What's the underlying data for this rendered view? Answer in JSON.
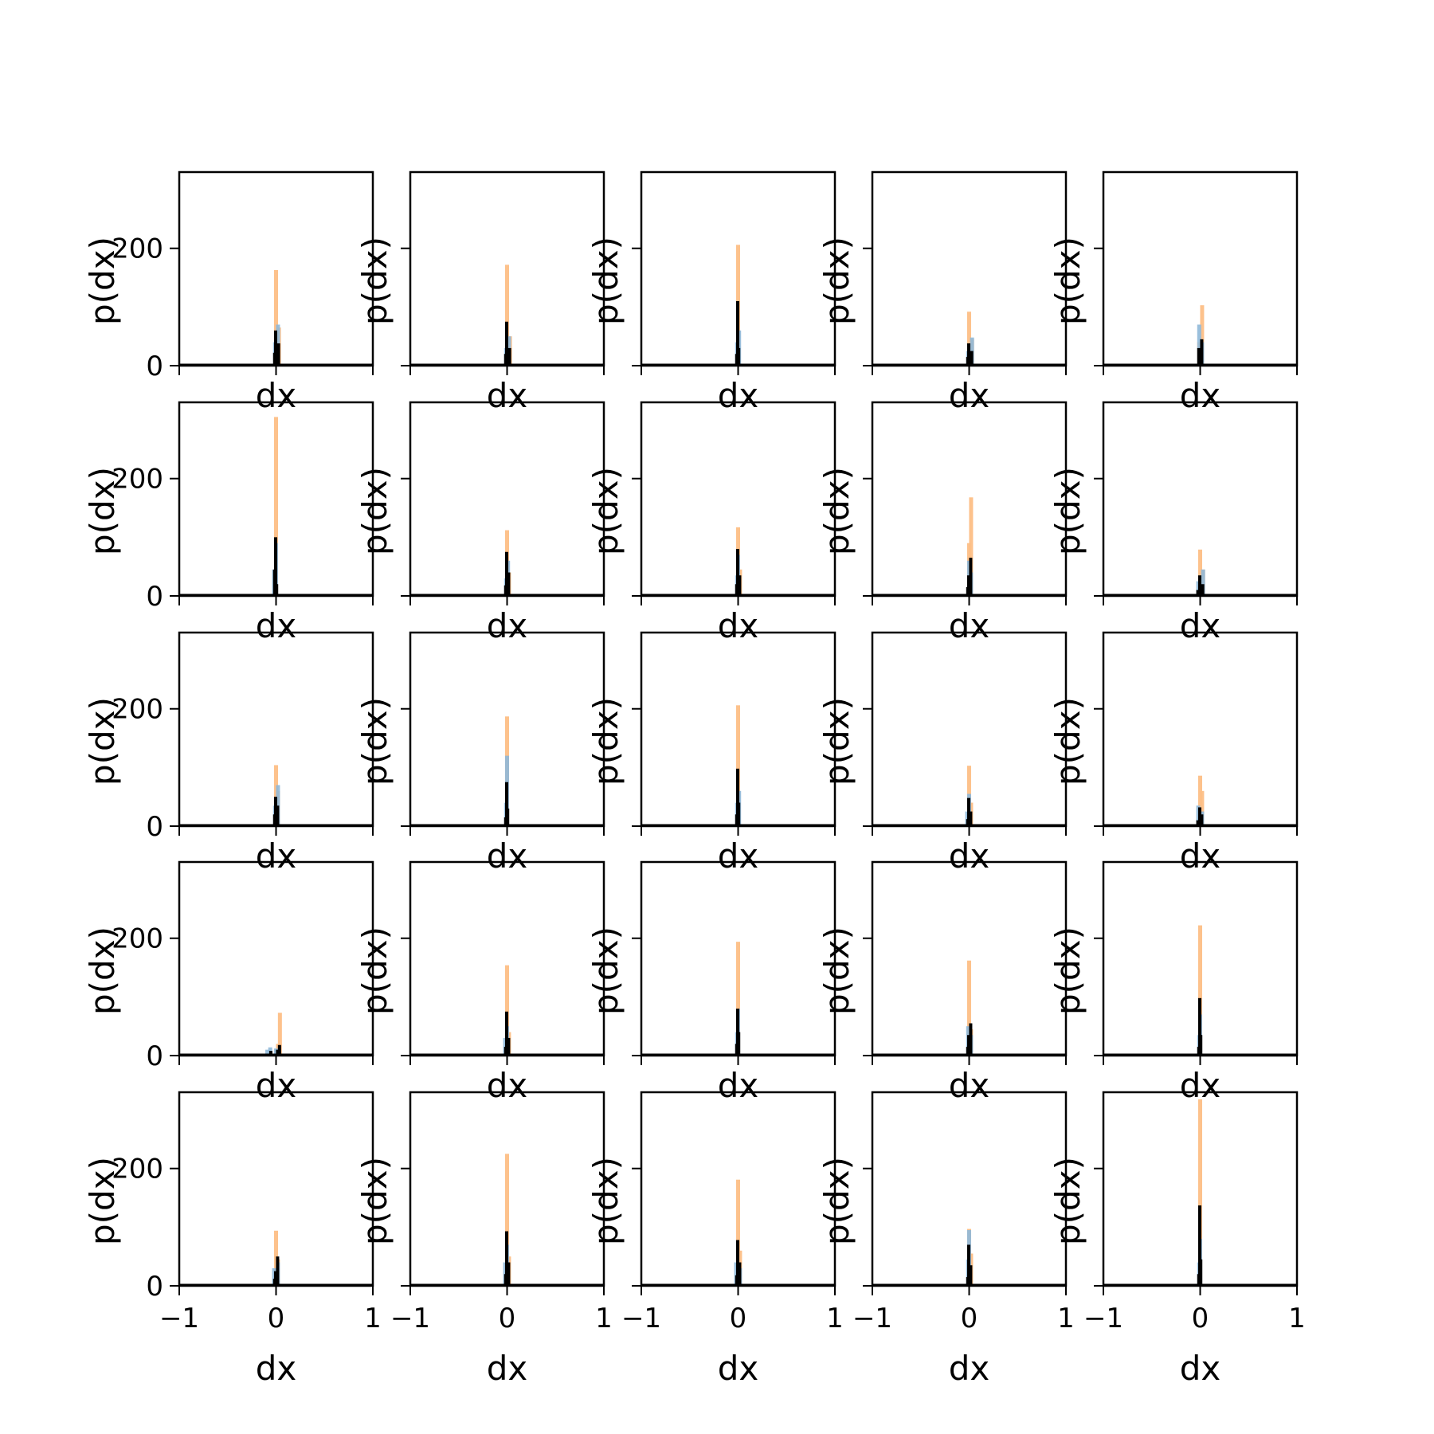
{
  "chart_data": {
    "type": "histogram-grid",
    "rows": 5,
    "cols": 5,
    "xlabel": "dx",
    "ylabel": "p(dx)",
    "xlim": [
      -1,
      1
    ],
    "ylim": [
      0,
      330
    ],
    "xticks": [
      -1,
      0,
      1
    ],
    "xtick_labels": [
      "−1",
      "0",
      "1"
    ],
    "yticks": [
      0,
      200
    ],
    "ytick_labels": [
      "0",
      "200"
    ],
    "grid": false,
    "legend": "none",
    "series_colors": {
      "orange": "#fdbf86",
      "blue": "#8fb8d8",
      "black": "#000000"
    },
    "panels": [
      {
        "row": 0,
        "col": 0,
        "orange": [
          [
            0.0,
            163
          ],
          [
            0.03,
            65
          ]
        ],
        "blue": [
          [
            0.02,
            70
          ],
          [
            -0.01,
            40
          ]
        ],
        "black": [
          [
            0.0,
            60
          ],
          [
            0.03,
            38
          ],
          [
            -0.01,
            22
          ]
        ]
      },
      {
        "row": 0,
        "col": 1,
        "orange": [
          [
            0.0,
            172
          ],
          [
            0.03,
            50
          ]
        ],
        "blue": [
          [
            0.02,
            50
          ],
          [
            -0.01,
            30
          ]
        ],
        "black": [
          [
            0.0,
            75
          ],
          [
            0.03,
            30
          ],
          [
            -0.01,
            20
          ]
        ]
      },
      {
        "row": 0,
        "col": 2,
        "orange": [
          [
            0.0,
            206
          ]
        ],
        "blue": [
          [
            0.01,
            60
          ],
          [
            -0.01,
            40
          ]
        ],
        "black": [
          [
            0.0,
            110
          ],
          [
            0.01,
            30
          ],
          [
            -0.01,
            20
          ]
        ]
      },
      {
        "row": 0,
        "col": 3,
        "orange": [
          [
            0.0,
            92
          ],
          [
            0.03,
            45
          ]
        ],
        "blue": [
          [
            0.03,
            48
          ],
          [
            -0.01,
            25
          ]
        ],
        "black": [
          [
            0.0,
            38
          ],
          [
            0.03,
            25
          ],
          [
            -0.01,
            15
          ]
        ]
      },
      {
        "row": 0,
        "col": 4,
        "orange": [
          [
            0.02,
            103
          ],
          [
            -0.01,
            40
          ]
        ],
        "blue": [
          [
            -0.01,
            70
          ],
          [
            0.02,
            40
          ]
        ],
        "black": [
          [
            0.02,
            45
          ],
          [
            -0.01,
            30
          ],
          [
            0.0,
            15
          ]
        ]
      },
      {
        "row": 1,
        "col": 0,
        "orange": [
          [
            0.0,
            305
          ]
        ],
        "blue": [
          [
            0.0,
            90
          ],
          [
            -0.02,
            45
          ]
        ],
        "black": [
          [
            0.0,
            100
          ],
          [
            -0.01,
            45
          ],
          [
            0.01,
            20
          ]
        ]
      },
      {
        "row": 1,
        "col": 1,
        "orange": [
          [
            0.0,
            112
          ],
          [
            0.02,
            40
          ]
        ],
        "blue": [
          [
            0.01,
            60
          ],
          [
            -0.01,
            30
          ]
        ],
        "black": [
          [
            0.0,
            75
          ],
          [
            0.02,
            40
          ],
          [
            -0.01,
            18
          ]
        ]
      },
      {
        "row": 1,
        "col": 2,
        "orange": [
          [
            0.0,
            117
          ],
          [
            0.02,
            45
          ]
        ],
        "blue": [
          [
            0.0,
            70
          ],
          [
            -0.01,
            35
          ]
        ],
        "black": [
          [
            0.0,
            80
          ],
          [
            0.02,
            35
          ],
          [
            -0.01,
            20
          ]
        ]
      },
      {
        "row": 1,
        "col": 3,
        "orange": [
          [
            0.02,
            168
          ],
          [
            0.0,
            90
          ]
        ],
        "blue": [
          [
            0.0,
            60
          ],
          [
            0.02,
            40
          ]
        ],
        "black": [
          [
            0.02,
            65
          ],
          [
            0.0,
            35
          ],
          [
            -0.01,
            15
          ]
        ]
      },
      {
        "row": 1,
        "col": 4,
        "orange": [
          [
            0.0,
            79
          ],
          [
            0.03,
            45
          ]
        ],
        "blue": [
          [
            0.03,
            45
          ],
          [
            -0.02,
            25
          ]
        ],
        "black": [
          [
            0.0,
            35
          ],
          [
            0.03,
            20
          ],
          [
            -0.02,
            10
          ]
        ]
      },
      {
        "row": 2,
        "col": 0,
        "orange": [
          [
            0.0,
            104
          ],
          [
            0.02,
            60
          ]
        ],
        "blue": [
          [
            0.02,
            70
          ],
          [
            -0.01,
            35
          ]
        ],
        "black": [
          [
            0.0,
            50
          ],
          [
            0.02,
            35
          ],
          [
            -0.01,
            20
          ]
        ]
      },
      {
        "row": 2,
        "col": 1,
        "orange": [
          [
            0.0,
            187
          ]
        ],
        "blue": [
          [
            0.0,
            120
          ],
          [
            -0.01,
            40
          ]
        ],
        "black": [
          [
            0.0,
            75
          ],
          [
            0.01,
            30
          ],
          [
            -0.01,
            15
          ]
        ]
      },
      {
        "row": 2,
        "col": 2,
        "orange": [
          [
            0.0,
            206
          ]
        ],
        "blue": [
          [
            0.01,
            60
          ],
          [
            -0.01,
            40
          ]
        ],
        "black": [
          [
            0.0,
            98
          ],
          [
            0.01,
            40
          ],
          [
            -0.01,
            20
          ]
        ]
      },
      {
        "row": 2,
        "col": 3,
        "orange": [
          [
            0.0,
            103
          ],
          [
            0.02,
            40
          ]
        ],
        "blue": [
          [
            0.0,
            55
          ],
          [
            -0.02,
            25
          ]
        ],
        "black": [
          [
            0.0,
            48
          ],
          [
            0.02,
            25
          ],
          [
            -0.01,
            12
          ]
        ]
      },
      {
        "row": 2,
        "col": 4,
        "orange": [
          [
            0.0,
            86
          ],
          [
            0.02,
            60
          ]
        ],
        "blue": [
          [
            -0.02,
            35
          ],
          [
            0.02,
            25
          ]
        ],
        "black": [
          [
            0.0,
            32
          ],
          [
            0.02,
            20
          ],
          [
            -0.02,
            10
          ]
        ]
      },
      {
        "row": 3,
        "col": 0,
        "orange": [
          [
            0.04,
            73
          ],
          [
            0.02,
            20
          ]
        ],
        "blue": [
          [
            -0.06,
            14
          ],
          [
            -0.09,
            10
          ],
          [
            0.0,
            12
          ]
        ],
        "black": [
          [
            0.04,
            18
          ],
          [
            0.02,
            10
          ],
          [
            -0.05,
            8
          ]
        ]
      },
      {
        "row": 3,
        "col": 1,
        "orange": [
          [
            0.0,
            154
          ],
          [
            0.02,
            40
          ]
        ],
        "blue": [
          [
            0.0,
            50
          ],
          [
            -0.02,
            30
          ]
        ],
        "black": [
          [
            0.0,
            75
          ],
          [
            0.02,
            30
          ],
          [
            -0.01,
            15
          ]
        ]
      },
      {
        "row": 3,
        "col": 2,
        "orange": [
          [
            0.0,
            194
          ]
        ],
        "blue": [
          [
            0.0,
            80
          ],
          [
            -0.01,
            40
          ]
        ],
        "black": [
          [
            0.0,
            80
          ],
          [
            0.01,
            40
          ],
          [
            -0.01,
            20
          ]
        ]
      },
      {
        "row": 3,
        "col": 3,
        "orange": [
          [
            0.0,
            162
          ],
          [
            0.02,
            45
          ]
        ],
        "blue": [
          [
            -0.01,
            50
          ],
          [
            0.02,
            35
          ]
        ],
        "black": [
          [
            0.02,
            55
          ],
          [
            0.0,
            35
          ],
          [
            -0.01,
            15
          ]
        ]
      },
      {
        "row": 3,
        "col": 4,
        "orange": [
          [
            0.0,
            222
          ]
        ],
        "blue": [
          [
            0.0,
            70
          ],
          [
            -0.01,
            35
          ]
        ],
        "black": [
          [
            0.0,
            98
          ],
          [
            0.01,
            35
          ],
          [
            -0.01,
            15
          ]
        ]
      },
      {
        "row": 4,
        "col": 0,
        "orange": [
          [
            0.0,
            94
          ],
          [
            0.02,
            45
          ]
        ],
        "blue": [
          [
            -0.02,
            30
          ],
          [
            0.02,
            40
          ]
        ],
        "black": [
          [
            0.02,
            50
          ],
          [
            0.0,
            25
          ],
          [
            -0.01,
            12
          ]
        ]
      },
      {
        "row": 4,
        "col": 1,
        "orange": [
          [
            0.0,
            225
          ],
          [
            0.02,
            50
          ]
        ],
        "blue": [
          [
            0.0,
            70
          ],
          [
            -0.02,
            40
          ]
        ],
        "black": [
          [
            0.0,
            93
          ],
          [
            0.02,
            40
          ],
          [
            -0.01,
            20
          ]
        ]
      },
      {
        "row": 4,
        "col": 2,
        "orange": [
          [
            0.0,
            181
          ],
          [
            0.02,
            60
          ]
        ],
        "blue": [
          [
            -0.02,
            40
          ],
          [
            0.02,
            30
          ]
        ],
        "black": [
          [
            0.0,
            78
          ],
          [
            0.02,
            40
          ],
          [
            -0.01,
            18
          ]
        ]
      },
      {
        "row": 4,
        "col": 3,
        "orange": [
          [
            0.0,
            97
          ],
          [
            0.02,
            55
          ]
        ],
        "blue": [
          [
            0.0,
            95
          ],
          [
            -0.01,
            45
          ]
        ],
        "black": [
          [
            0.0,
            70
          ],
          [
            0.02,
            35
          ],
          [
            -0.01,
            15
          ]
        ]
      },
      {
        "row": 4,
        "col": 4,
        "orange": [
          [
            0.0,
            318
          ]
        ],
        "blue": [
          [
            0.0,
            80
          ],
          [
            -0.01,
            40
          ]
        ],
        "black": [
          [
            0.0,
            137
          ],
          [
            0.01,
            45
          ],
          [
            -0.01,
            20
          ]
        ]
      }
    ]
  }
}
